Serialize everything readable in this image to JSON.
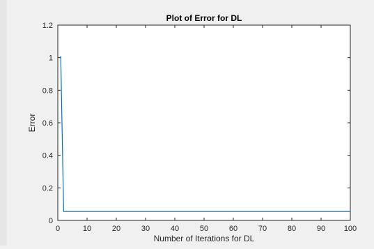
{
  "chart_data": {
    "type": "line",
    "title": "Plot of Error for DL",
    "xlabel": "Number of Iterations for DL",
    "ylabel": "Error",
    "xlim": [
      0,
      100
    ],
    "ylim": [
      0,
      1.2
    ],
    "xticks": [
      0,
      10,
      20,
      30,
      40,
      50,
      60,
      70,
      80,
      90,
      100
    ],
    "xtick_labels": [
      "0",
      "10",
      "20",
      "30",
      "40",
      "50",
      "60",
      "70",
      "80",
      "90",
      "100"
    ],
    "yticks": [
      0,
      0.2,
      0.4,
      0.6,
      0.8,
      1,
      1.2
    ],
    "ytick_labels": [
      "0",
      "0.2",
      "0.4",
      "0.6",
      "0.8",
      "1",
      "1.2"
    ],
    "grid": false,
    "legend": "none",
    "series": [
      {
        "color": "#0072BD",
        "x": [
          1,
          2,
          3,
          100
        ],
        "y": [
          1.01,
          0.055,
          0.055,
          0.055
        ]
      }
    ]
  }
}
